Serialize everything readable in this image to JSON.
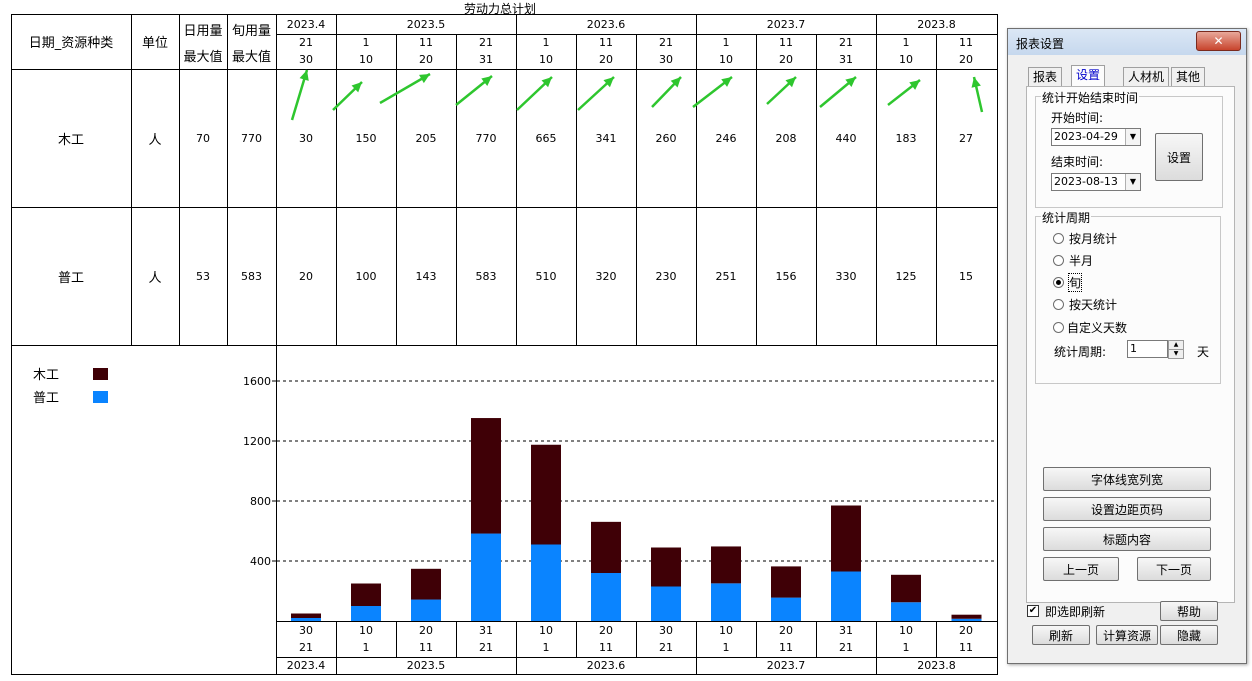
{
  "report": {
    "title": "劳动力总计划",
    "header": {
      "date_resource": "日期_资源种类",
      "unit": "单位",
      "daily_max_line1": "日用量",
      "daily_max_line2": "最大值",
      "period_max_line1": "旬用量",
      "period_max_line2": "最大值"
    },
    "months": [
      "2023.4",
      "2023.5",
      "2023.6",
      "2023.7",
      "2023.8"
    ],
    "period_starts": [
      "21",
      "1",
      "11",
      "21",
      "1",
      "11",
      "21",
      "1",
      "11",
      "21",
      "1",
      "11"
    ],
    "period_ends": [
      "30",
      "10",
      "20",
      "31",
      "10",
      "20",
      "30",
      "10",
      "20",
      "31",
      "10",
      "20"
    ],
    "rows": [
      {
        "name": "木工",
        "unit": "人",
        "daily_max": "70",
        "period_max": "770",
        "values": [
          "30",
          "150",
          "205",
          "770",
          "665",
          "341",
          "260",
          "246",
          "208",
          "440",
          "183",
          "27"
        ]
      },
      {
        "name": "普工",
        "unit": "人",
        "daily_max": "53",
        "period_max": "583",
        "values": [
          "20",
          "100",
          "143",
          "583",
          "510",
          "320",
          "230",
          "251",
          "156",
          "330",
          "125",
          "15"
        ]
      }
    ]
  },
  "chart_data": {
    "type": "bar",
    "stacked": true,
    "categories": [
      "30/21",
      "10/1",
      "20/11",
      "31/21",
      "10/1",
      "20/11",
      "30/21",
      "10/1",
      "20/11",
      "31/21",
      "10/1",
      "20/11"
    ],
    "series": [
      {
        "name": "普工",
        "color": "#0a84ff",
        "values": [
          20,
          100,
          143,
          583,
          510,
          320,
          230,
          251,
          156,
          330,
          125,
          15
        ]
      },
      {
        "name": "木工",
        "color": "#3f0006",
        "values": [
          30,
          150,
          205,
          770,
          665,
          341,
          260,
          246,
          208,
          440,
          183,
          27
        ]
      }
    ],
    "yticks": [
      400,
      800,
      1200,
      1600
    ],
    "ylim": [
      0,
      1600
    ],
    "grid": true,
    "legend_position": "top-left",
    "x_months": [
      "2023.4",
      "2023.5",
      "2023.6",
      "2023.7",
      "2023.8"
    ]
  },
  "dialog": {
    "title": "报表设置",
    "close": "✕",
    "tabs": [
      "报表",
      "设置",
      "人材机",
      "其他"
    ],
    "active_tab": "设置",
    "time_group": "统计开始结束时间",
    "start_label": "开始时间:",
    "start_value": "2023-04-29",
    "end_label": "结束时间:",
    "end_value": "2023-08-13",
    "set_button": "设置",
    "period_group": "统计周期",
    "radios": [
      "按月统计",
      "半月",
      "旬",
      "按天统计",
      "自定义天数"
    ],
    "selected_radio": "旬",
    "cycle_label": "统计周期:",
    "cycle_value": "1",
    "cycle_unit": "天",
    "btn_font": "字体线宽列宽",
    "btn_margin": "设置边距页码",
    "btn_title": "标题内容",
    "btn_prev": "上一页",
    "btn_next": "下一页",
    "auto_refresh": "即选即刷新",
    "btn_help": "帮助",
    "btn_refresh": "刷新",
    "btn_calc": "计算资源",
    "btn_hide": "隐藏"
  }
}
